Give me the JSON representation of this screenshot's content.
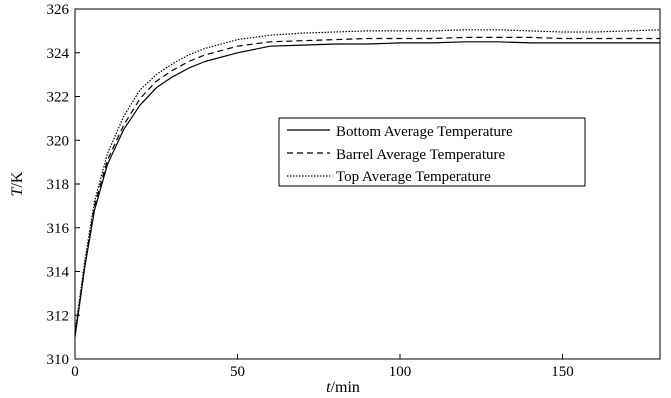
{
  "chart_data": {
    "type": "line",
    "xlabel": {
      "italic": "t",
      "rest": "/min"
    },
    "ylabel": {
      "italic": "T",
      "rest": "/K"
    },
    "xlim": [
      0,
      180
    ],
    "ylim": [
      310,
      326
    ],
    "xticks": [
      0,
      50,
      100,
      150
    ],
    "yticks": [
      310,
      312,
      314,
      316,
      318,
      320,
      322,
      324,
      326
    ],
    "grid": false,
    "legend_position": "center-right",
    "series": [
      {
        "name": "Bottom Average Temperature",
        "style": "solid",
        "x": [
          0,
          3,
          6,
          10,
          15,
          20,
          25,
          30,
          35,
          40,
          50,
          60,
          70,
          80,
          90,
          100,
          110,
          120,
          130,
          140,
          150,
          160,
          170,
          180
        ],
        "y": [
          311.0,
          314.2,
          316.8,
          318.9,
          320.5,
          321.6,
          322.4,
          322.9,
          323.3,
          323.6,
          324.0,
          324.3,
          324.35,
          324.4,
          324.4,
          324.45,
          324.45,
          324.5,
          324.5,
          324.45,
          324.45,
          324.45,
          324.45,
          324.45
        ]
      },
      {
        "name": "Barrel Average Temperature",
        "style": "dashed",
        "x": [
          0,
          3,
          6,
          10,
          15,
          20,
          25,
          30,
          35,
          40,
          50,
          60,
          70,
          80,
          90,
          100,
          110,
          120,
          130,
          140,
          150,
          160,
          170,
          180
        ],
        "y": [
          311.1,
          314.3,
          317.0,
          319.1,
          320.7,
          321.9,
          322.7,
          323.2,
          323.6,
          323.9,
          324.3,
          324.5,
          324.55,
          324.6,
          324.65,
          324.65,
          324.65,
          324.7,
          324.7,
          324.7,
          324.65,
          324.65,
          324.65,
          324.65
        ]
      },
      {
        "name": "Top Average Temperature",
        "style": "dotted",
        "x": [
          0,
          3,
          6,
          10,
          15,
          20,
          25,
          30,
          35,
          40,
          50,
          60,
          70,
          80,
          90,
          100,
          110,
          120,
          130,
          140,
          150,
          160,
          170,
          180
        ],
        "y": [
          311.2,
          314.5,
          317.2,
          319.4,
          321.1,
          322.3,
          323.0,
          323.5,
          323.9,
          324.2,
          324.6,
          324.8,
          324.9,
          324.95,
          325.0,
          325.0,
          325.0,
          325.05,
          325.05,
          325.0,
          324.95,
          324.95,
          325.0,
          325.05
        ]
      }
    ]
  }
}
